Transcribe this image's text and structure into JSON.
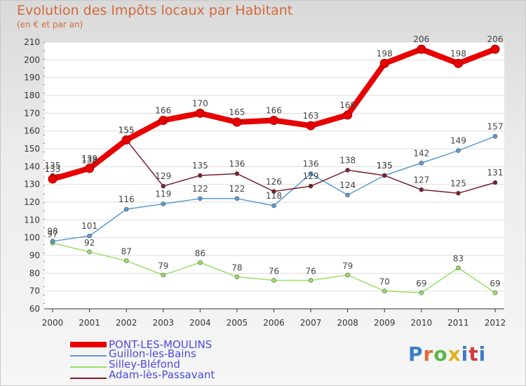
{
  "title": "Evolution des Impôts locaux par Habitant",
  "subtitle": "(en € et par an)",
  "logo": {
    "text": "Proxiti",
    "colors": [
      "#3a7ec8",
      "#e06a3a",
      "#58b848",
      "#e0b020",
      "#3a7ec8",
      "#d03a3a",
      "#3a7ec8"
    ]
  },
  "chart_data": {
    "type": "line",
    "x": [
      "2000",
      "2001",
      "2002",
      "2003",
      "2004",
      "2005",
      "2006",
      "2007",
      "2008",
      "2009",
      "2010",
      "2011",
      "2012"
    ],
    "ylim": [
      60,
      210
    ],
    "yticks": [
      60,
      70,
      80,
      90,
      100,
      110,
      120,
      130,
      140,
      150,
      160,
      170,
      180,
      190,
      200,
      210
    ],
    "grid": true,
    "legend_position": "bottom-left",
    "series": [
      {
        "name": "PONT-LES-MOULINS",
        "color": "#e80000",
        "values": [
          133,
          139,
          155,
          166,
          170,
          165,
          166,
          163,
          169,
          198,
          206,
          198,
          206
        ],
        "labels": [
          "133",
          "139",
          "155",
          "166",
          "170",
          "165",
          "166",
          "163",
          "169",
          "198",
          "206",
          "198",
          "206"
        ]
      },
      {
        "name": "Guillon-les-Bains",
        "color": "#5a9bd5",
        "values": [
          98,
          101,
          116,
          119,
          122,
          122,
          118,
          136,
          124,
          135,
          142,
          149,
          157
        ],
        "labels": [
          "98",
          "101",
          "116",
          "119",
          "122",
          "122",
          "118",
          "136",
          "124",
          "135",
          "142",
          "149",
          "157"
        ]
      },
      {
        "name": "Silley-Bléfond",
        "color": "#99e066",
        "values": [
          97,
          92,
          87,
          79,
          86,
          78,
          76,
          76,
          79,
          70,
          69,
          83,
          69
        ],
        "labels": [
          "97",
          "92",
          "87",
          "79",
          "86",
          "78",
          "76",
          "76",
          "79",
          "70",
          "69",
          "83",
          "69"
        ]
      },
      {
        "name": "Adam-lès-Passavant",
        "color": "#7a1f28",
        "values": [
          135,
          138,
          155,
          129,
          135,
          136,
          126,
          129,
          138,
          135,
          127,
          125,
          131
        ],
        "labels": [
          "135",
          "138",
          "155",
          "129",
          "135",
          "136",
          "126",
          "129",
          "138",
          "135",
          "127",
          "125",
          "131"
        ]
      }
    ]
  }
}
